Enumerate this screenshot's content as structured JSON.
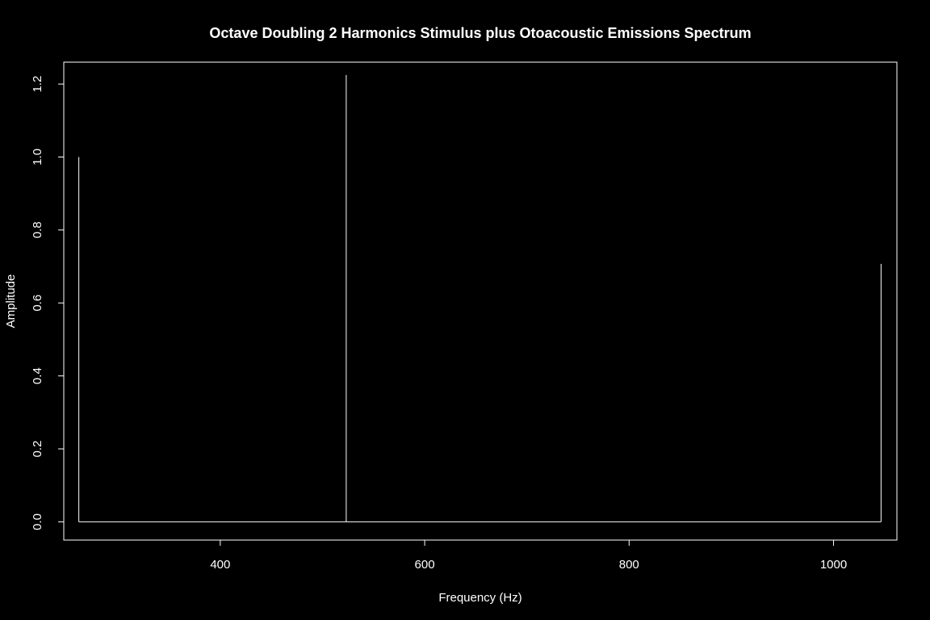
{
  "colors": {
    "background": "#000000",
    "foreground": "#ffffff"
  },
  "chart_data": {
    "type": "line",
    "style": "R type='h' spike spectrum with zero baseline",
    "title": "Octave Doubling 2 Harmonics Stimulus plus Otoacoustic Emissions Spectrum",
    "xlabel": "Frequency (Hz)",
    "ylabel": "Amplitude",
    "xlim": [
      246.9,
      1062.0
    ],
    "ylim": [
      -0.05,
      1.26
    ],
    "x_ticks": [
      400,
      600,
      800,
      1000
    ],
    "x_tick_labels": [
      "400",
      "600",
      "800",
      "1000"
    ],
    "y_ticks": [
      0.0,
      0.2,
      0.4,
      0.6,
      0.8,
      1.0,
      1.2
    ],
    "y_tick_labels": [
      "0.0",
      "0.2",
      "0.4",
      "0.6",
      "0.8",
      "1.0",
      "1.2"
    ],
    "grid": false,
    "legend": "none",
    "x": [
      261.63,
      523.25,
      1046.5
    ],
    "y": [
      1.0,
      1.225,
      0.707
    ]
  }
}
